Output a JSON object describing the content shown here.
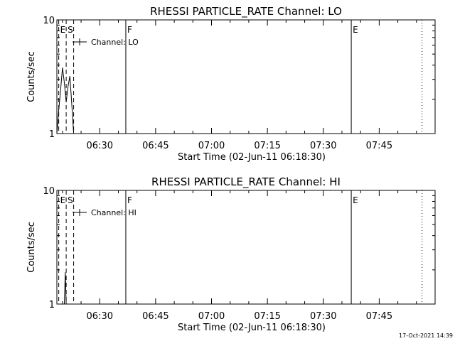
{
  "chart_data": [
    {
      "type": "line",
      "title": "RHESSI PARTICLE_RATE Channel: LO",
      "xlabel": "Start Time (02-Jun-11 06:18:30)",
      "ylabel": "Counts/sec",
      "yscale": "log",
      "ylim": [
        1,
        10
      ],
      "xlim": [
        "06:18:30",
        "08:00:00"
      ],
      "x_ticks": [
        "06:30",
        "06:45",
        "07:00",
        "07:15",
        "07:30",
        "07:45"
      ],
      "y_ticks": [
        "1",
        "10"
      ],
      "grid": false,
      "legend": {
        "label": "Channel: LO",
        "placement": "top-left"
      },
      "markers": [
        {
          "label": "E",
          "time": "06:19:00",
          "style": "dashed"
        },
        {
          "label": "S",
          "time": "06:21:00",
          "style": "dashed"
        },
        {
          "label": "",
          "time": "06:23:00",
          "style": "dashed"
        },
        {
          "label": "F",
          "time": "06:37:00",
          "style": "solid"
        },
        {
          "label": "E",
          "time": "07:37:30",
          "style": "solid"
        },
        {
          "label": "",
          "time": "07:56:30",
          "style": "dotted"
        }
      ],
      "series": [
        {
          "x": [
            "06:18:30",
            "06:19:00",
            "06:19:30",
            "06:20:00",
            "06:20:30",
            "06:21:00",
            "06:21:30",
            "06:22:00",
            "06:22:30",
            "06:23:00"
          ],
          "values": [
            1,
            1.6,
            2.4,
            3.8,
            2.8,
            1.9,
            2.6,
            3.2,
            1.8,
            1
          ]
        }
      ]
    },
    {
      "type": "line",
      "title": "RHESSI PARTICLE_RATE Channel: HI",
      "xlabel": "Start Time (02-Jun-11 06:18:30)",
      "ylabel": "Counts/sec",
      "yscale": "log",
      "ylim": [
        1,
        10
      ],
      "xlim": [
        "06:18:30",
        "08:00:00"
      ],
      "x_ticks": [
        "06:30",
        "06:45",
        "07:00",
        "07:15",
        "07:30",
        "07:45"
      ],
      "y_ticks": [
        "1",
        "10"
      ],
      "grid": false,
      "legend": {
        "label": "Channel: HI",
        "placement": "top-left"
      },
      "markers": [
        {
          "label": "E",
          "time": "06:19:00",
          "style": "dashed"
        },
        {
          "label": "S",
          "time": "06:21:00",
          "style": "dashed"
        },
        {
          "label": "",
          "time": "06:23:00",
          "style": "dashed"
        },
        {
          "label": "F",
          "time": "06:37:00",
          "style": "solid"
        },
        {
          "label": "E",
          "time": "07:37:30",
          "style": "solid"
        },
        {
          "label": "",
          "time": "07:56:30",
          "style": "dotted"
        }
      ],
      "series": [
        {
          "x": [
            "06:20:30",
            "06:20:45",
            "06:21:00"
          ],
          "values": [
            1,
            1.9,
            1
          ]
        }
      ]
    }
  ],
  "timestamp": "17-Oct-2021 14:39"
}
